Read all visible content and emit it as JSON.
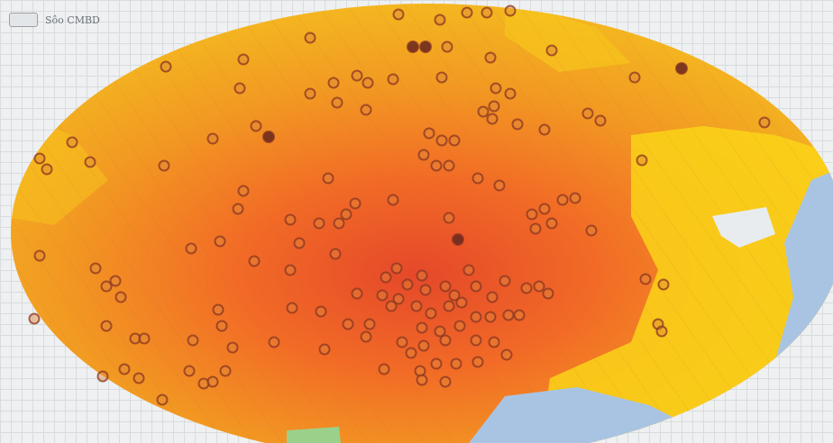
{
  "legend": {
    "label": "Sôo CMBD"
  },
  "colors": {
    "heat_low": "#fad418",
    "heat_mid": "#f29a22",
    "heat_high": "#e5482a",
    "water": "#a9c4e2",
    "marker_fill": "#e0873a",
    "marker_stroke": "#8a3520",
    "marker_dark": "#6e2a1f"
  }
}
